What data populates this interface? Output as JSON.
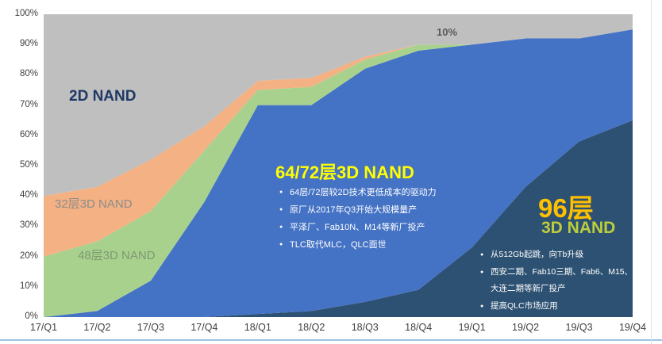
{
  "chart_data": {
    "type": "area",
    "stacked": true,
    "title": "",
    "xlabel": "",
    "ylabel": "",
    "ylim": [
      0,
      100
    ],
    "grid": false,
    "legend_position": "in-chart labels",
    "categories": [
      "17/Q1",
      "17/Q2",
      "17/Q3",
      "17/Q4",
      "18/Q1",
      "18/Q2",
      "18/Q3",
      "18/Q4",
      "19/Q1",
      "19/Q2",
      "19/Q3",
      "19/Q4"
    ],
    "y_ticks": [
      "0%",
      "10%",
      "20%",
      "30%",
      "40%",
      "50%",
      "60%",
      "70%",
      "80%",
      "90%",
      "100%"
    ],
    "series": [
      {
        "name": "96层3D NAND",
        "color": "#2D5172",
        "values": [
          0,
          0,
          0,
          0,
          1,
          2,
          5,
          9,
          23,
          43,
          58,
          65
        ]
      },
      {
        "name": "64/72层3D NAND",
        "color": "#4472C4",
        "values": [
          0,
          2,
          12,
          38,
          69,
          68,
          77,
          79,
          67,
          49,
          34,
          30
        ]
      },
      {
        "name": "48层3D NAND",
        "color": "#A9D18E",
        "values": [
          20,
          23,
          23,
          17,
          5,
          6,
          3,
          2,
          0,
          0,
          0,
          0
        ]
      },
      {
        "name": "32层3D NAND",
        "color": "#F4B183",
        "values": [
          20,
          18,
          17,
          8,
          3,
          3,
          1,
          0,
          0,
          0,
          0,
          0
        ]
      },
      {
        "name": "2D NAND",
        "color": "#BFBFBF",
        "values": [
          60,
          57,
          48,
          37,
          22,
          21,
          14,
          10,
          10,
          8,
          8,
          5
        ]
      }
    ]
  },
  "annotations": {
    "label_2d": {
      "text": "2D NAND",
      "color": "#1F3864"
    },
    "label_32": {
      "text": "32层3D NAND",
      "color": "#8C8C8C"
    },
    "label_48": {
      "text": "48层3D NAND",
      "color": "#7D9A71"
    },
    "label_6472": {
      "text": "64/72层3D NAND",
      "color": "#FFFF00"
    },
    "bullets_6472": [
      "64层/72层较2D技术更低成本的驱动力",
      "原厂从2017年Q3开始大规模量产",
      "平泽厂、Fab10N、M14等新厂投产",
      "TLC取代MLC，QLC面世"
    ],
    "label_96": {
      "text": "96层",
      "color": "#FFC000"
    },
    "label_96_sub": {
      "text": "3D NAND",
      "color": "#BCCE3C"
    },
    "bullets_96": [
      "从512Gb起跳，向Tb升级",
      "西安二期、Fab10三期、Fab6、M15、大连二期等新厂投产",
      "提高QLC市场应用"
    ],
    "callout_10pct": "10%"
  }
}
